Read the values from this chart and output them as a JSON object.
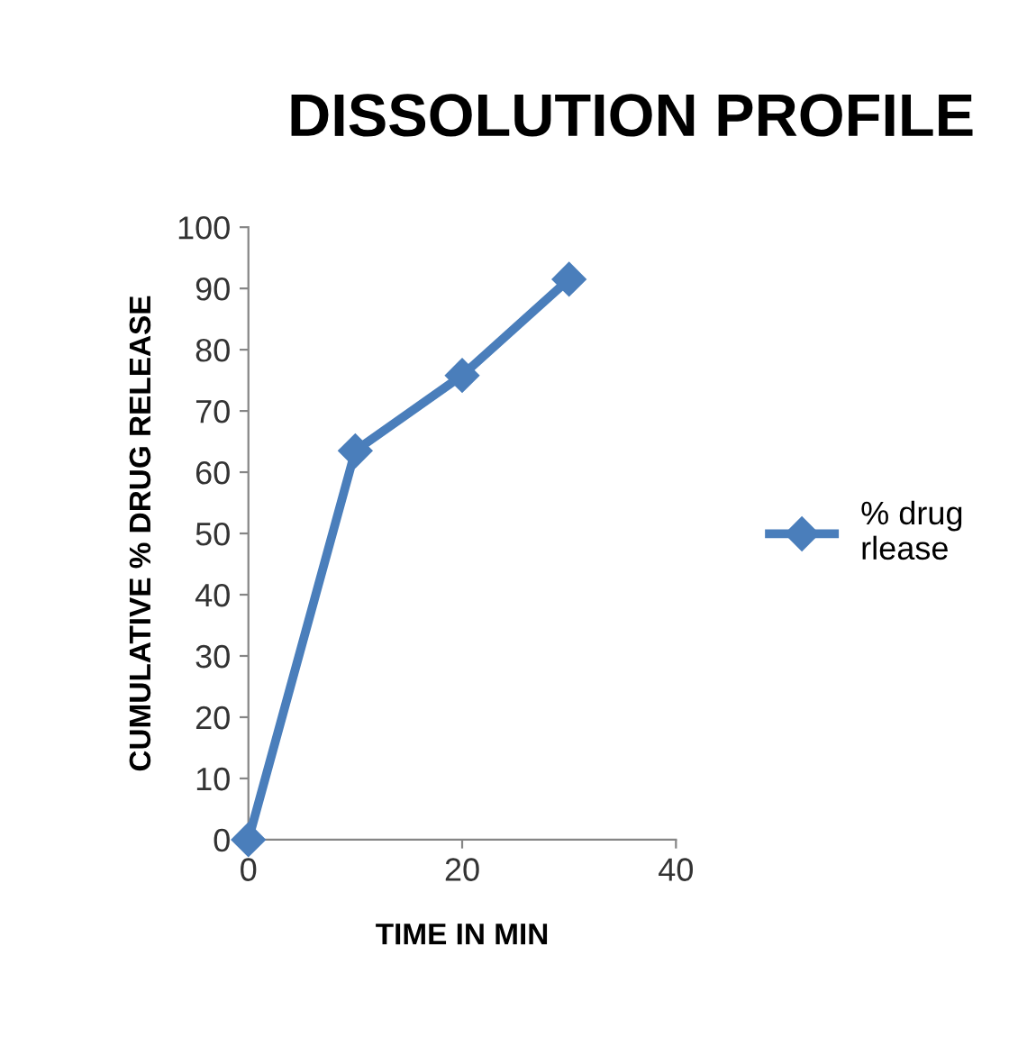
{
  "chart_data": {
    "type": "line",
    "title": "DISSOLUTION PROFILE",
    "xlabel": "TIME IN MIN",
    "ylabel": "CUMULATIVE % DRUG RELEASE",
    "x": [
      0,
      10,
      20,
      30
    ],
    "series": [
      {
        "name": "% drug\nrlease",
        "color": "#4a7ebb",
        "values": [
          0,
          63.5,
          75.8,
          91.5
        ]
      }
    ],
    "xlim": [
      0,
      40
    ],
    "xticks": [
      0,
      20,
      40
    ],
    "ylim": [
      0,
      100
    ],
    "yticks": [
      0,
      10,
      20,
      30,
      40,
      50,
      60,
      70,
      80,
      90,
      100
    ],
    "marker": "diamond",
    "legend": "right",
    "grid": false
  }
}
